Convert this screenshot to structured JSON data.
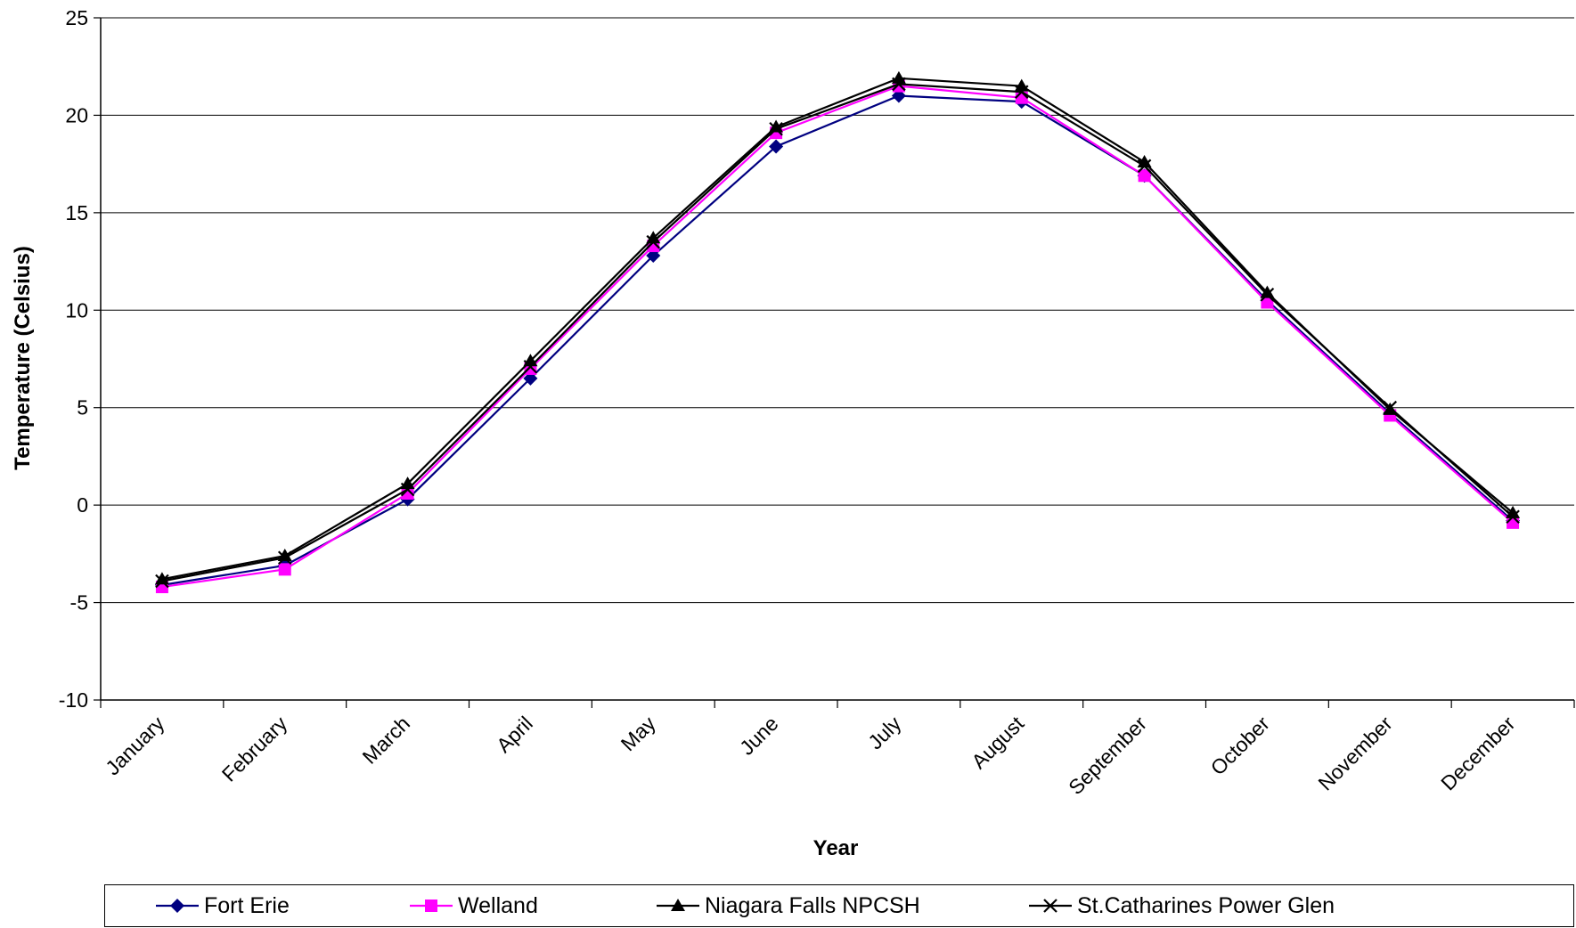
{
  "chart_data": {
    "type": "line",
    "title": "",
    "xlabel": "Year",
    "ylabel": "Temperature (Celsius)",
    "ylim": [
      -10,
      25
    ],
    "yticks": [
      -10,
      -5,
      0,
      5,
      10,
      15,
      20,
      25
    ],
    "grid": "horizontal",
    "legend_position": "bottom",
    "categories": [
      "January",
      "February",
      "March",
      "April",
      "May",
      "June",
      "July",
      "August",
      "September",
      "October",
      "November",
      "December"
    ],
    "series": [
      {
        "name": "Fort Erie",
        "color": "#000080",
        "marker": "diamond",
        "values": [
          -4.1,
          -3.1,
          0.3,
          6.5,
          12.8,
          18.4,
          21.0,
          20.7,
          16.9,
          10.5,
          4.7,
          -0.8
        ]
      },
      {
        "name": "Welland",
        "color": "#ff00ff",
        "marker": "square",
        "values": [
          -4.2,
          -3.3,
          0.6,
          7.0,
          13.3,
          19.1,
          21.5,
          20.9,
          16.9,
          10.4,
          4.6,
          -0.9
        ]
      },
      {
        "name": "Niagara Falls NPCSH",
        "color": "#000000",
        "marker": "triangle",
        "values": [
          -3.8,
          -2.6,
          1.1,
          7.4,
          13.7,
          19.4,
          21.9,
          21.5,
          17.6,
          10.9,
          4.9,
          -0.4
        ]
      },
      {
        "name": "St.Catharines Power Glen",
        "color": "#000000",
        "marker": "x",
        "values": [
          -3.9,
          -2.7,
          0.8,
          7.1,
          13.5,
          19.3,
          21.6,
          21.2,
          17.4,
          10.8,
          5.0,
          -0.6
        ]
      }
    ]
  }
}
